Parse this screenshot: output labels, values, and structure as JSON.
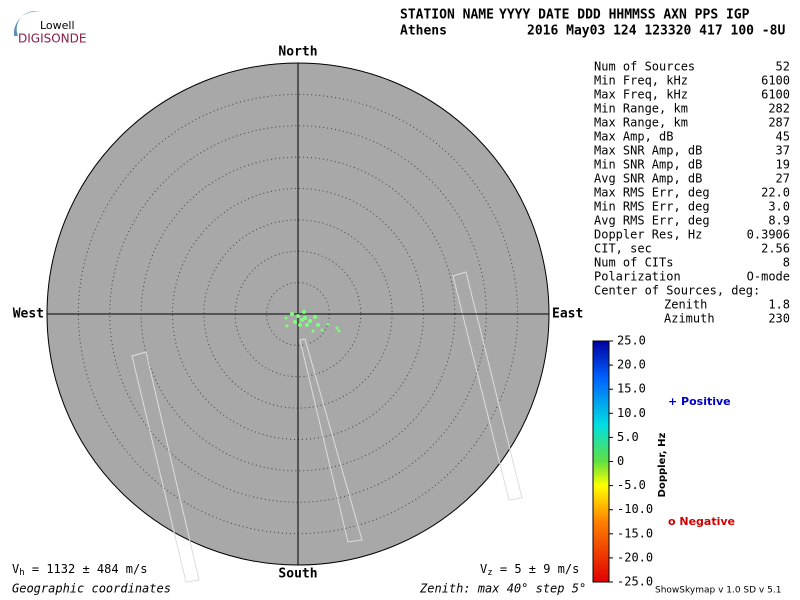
{
  "logo": {
    "top": "Lowell",
    "bottom": "DIGISONDE"
  },
  "header": {
    "labels": [
      "STATION NAME",
      "YYYY DATE  DDD HHMMSS AXN PPS IGP"
    ],
    "values": [
      "Athens",
      "2016 May03 124 123320 417 100 -8U"
    ]
  },
  "compass": {
    "north": "North",
    "south": "South",
    "east": "East",
    "west": "West"
  },
  "stats": {
    "rows": [
      [
        "Num of Sources",
        "52"
      ],
      [
        "Min Freq, kHz",
        "6100"
      ],
      [
        "Max Freq, kHz",
        "6100"
      ],
      [
        "Min Range, km",
        "282"
      ],
      [
        "Max Range, km",
        "287"
      ],
      [
        "Max Amp, dB",
        "45"
      ],
      [
        "Max SNR Amp, dB",
        "37"
      ],
      [
        "Min SNR Amp, dB",
        "19"
      ],
      [
        "Avg SNR Amp, dB",
        "27"
      ],
      [
        "Max RMS Err, deg",
        "22.0"
      ],
      [
        "Min RMS Err, deg",
        "3.0"
      ],
      [
        "Avg RMS Err, deg",
        "8.9"
      ],
      [
        "Doppler Res, Hz",
        "0.3906"
      ],
      [
        "CIT, sec",
        "2.56"
      ],
      [
        "Num of CITs",
        "8"
      ],
      [
        "Polarization",
        "O-mode"
      ]
    ],
    "center_title": "Center of Sources, deg:",
    "center_rows": [
      [
        "Zenith",
        "1.8"
      ],
      [
        "Azimuth",
        "230"
      ]
    ]
  },
  "colorbar": {
    "label": "Doppler, Hz",
    "lim": [
      -25,
      25
    ],
    "ticks": [
      {
        "value": 25,
        "label": "25.0"
      },
      {
        "value": 20,
        "label": "20.0"
      },
      {
        "value": 15,
        "label": "15.0"
      },
      {
        "value": 10,
        "label": "10.0"
      },
      {
        "value": 5,
        "label": "5.0"
      },
      0,
      {
        "value": -5,
        "label": "-5.0"
      },
      {
        "value": -10,
        "label": "-10.0"
      },
      {
        "value": -15,
        "label": "-15.0"
      },
      {
        "value": -20,
        "label": "-20.0"
      },
      {
        "value": -25,
        "label": "-25.0"
      }
    ]
  },
  "legend": {
    "positive": "+ Positive",
    "negative": "o Negative"
  },
  "footer": {
    "vh": {
      "symbol": "V",
      "subscript": "h",
      "text": " = 1132 ± 484 m/s"
    },
    "vz": {
      "symbol": "V",
      "subscript": "z",
      "text": " = 5 ± 9 m/s"
    },
    "coordinates": "Geographic coordinates",
    "zenith": "Zenith: max 40°  step 5°",
    "version": "ShowSkymap v 1.0   SD v 5.1"
  }
}
